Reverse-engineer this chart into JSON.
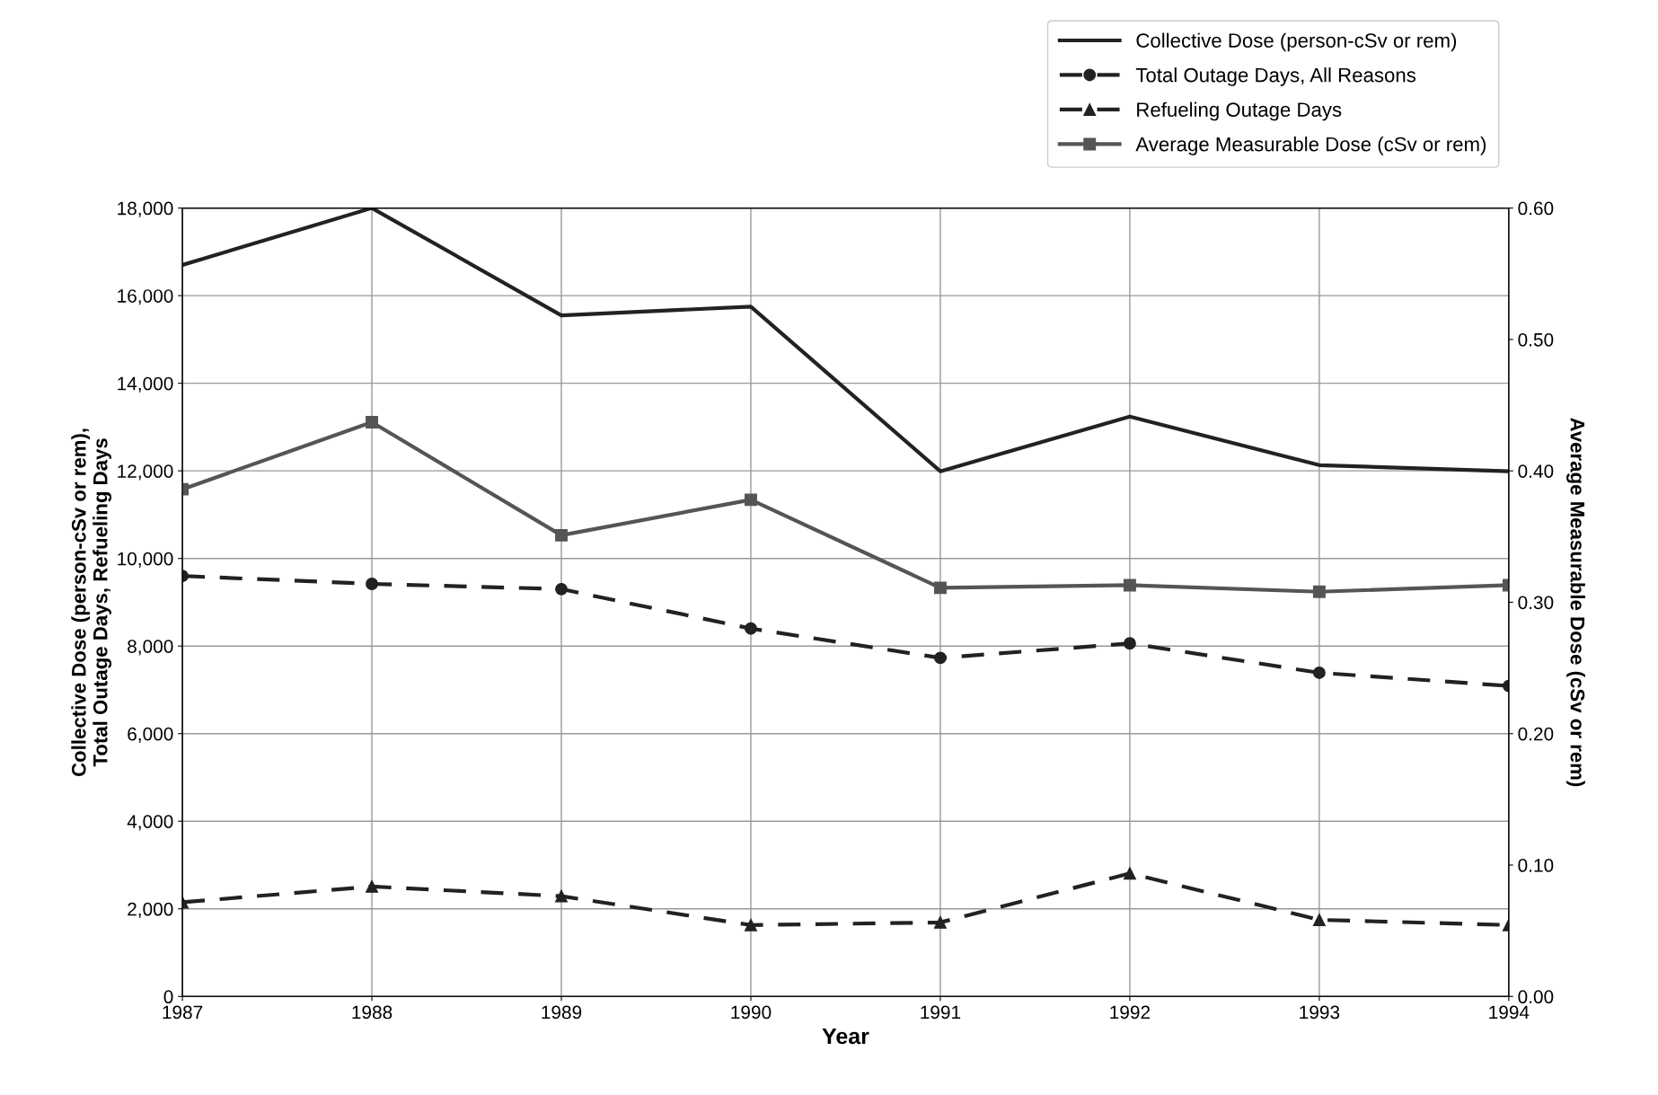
{
  "chart_data": {
    "type": "line",
    "xlabel": "Year",
    "ylabel": "Collective Dose (person-cSv or rem),\nTotal Outage Days, Refueling Days",
    "y2label": "Average Measurable Dose (cSv or rem)",
    "x": [
      1987,
      1988,
      1989,
      1990,
      1991,
      1992,
      1993,
      1994
    ],
    "xlim": [
      1987,
      1994
    ],
    "xticks": [
      1987,
      1988,
      1989,
      1990,
      1991,
      1992,
      1993,
      1994
    ],
    "ylim": [
      0,
      18000
    ],
    "yticks": [
      0,
      {
        "value": 2000,
        "label": "2,000"
      },
      {
        "value": 4000,
        "label": "4,000"
      },
      {
        "value": 6000,
        "label": "6,000"
      },
      {
        "value": 8000,
        "label": "8,000"
      },
      {
        "value": 10000,
        "label": "10,000"
      },
      {
        "value": 12000,
        "label": "12,000"
      },
      {
        "value": 14000,
        "label": "14,000"
      },
      {
        "value": 16000,
        "label": "16,000"
      },
      {
        "value": 18000,
        "label": "18,000"
      }
    ],
    "y2lim": [
      0,
      0.6
    ],
    "y2ticks": [
      {
        "value": 0,
        "label": "0.00"
      },
      {
        "value": 0.1,
        "label": "0.10"
      },
      {
        "value": 0.2,
        "label": "0.20"
      },
      {
        "value": 0.3,
        "label": "0.30"
      },
      {
        "value": 0.4,
        "label": "0.40"
      },
      {
        "value": 0.5,
        "label": "0.50"
      },
      {
        "value": 0.6,
        "label": "0.60"
      }
    ],
    "grid": true,
    "legend": "top right",
    "series": [
      {
        "name": "Collective Dose (person-cSv or rem)",
        "color": "#222222",
        "marker": "none",
        "line_style": "solid",
        "values": [
          16700,
          18000,
          15550,
          15750,
          11990,
          13240,
          12130,
          11990
        ]
      },
      {
        "name": "Total Outage Days, All Reasons",
        "color": "#222222",
        "marker": "circle",
        "line_style": "dashed",
        "values": [
          9600,
          9420,
          9300,
          8400,
          7730,
          8060,
          7390,
          7090
        ]
      },
      {
        "name": "Refueling Outage Days",
        "color": "#222222",
        "marker": "triangle",
        "line_style": "dashed",
        "values": [
          2150,
          2510,
          2290,
          1630,
          1690,
          2810,
          1750,
          1630
        ]
      },
      {
        "name": "Average Measurable Dose (cSv or rem)",
        "color": "#555555",
        "marker": "square",
        "line_style": "solid",
        "axis": "y2",
        "values": [
          0.386,
          0.437,
          0.351,
          0.378,
          0.311,
          0.313,
          0.308,
          0.313
        ]
      }
    ]
  }
}
